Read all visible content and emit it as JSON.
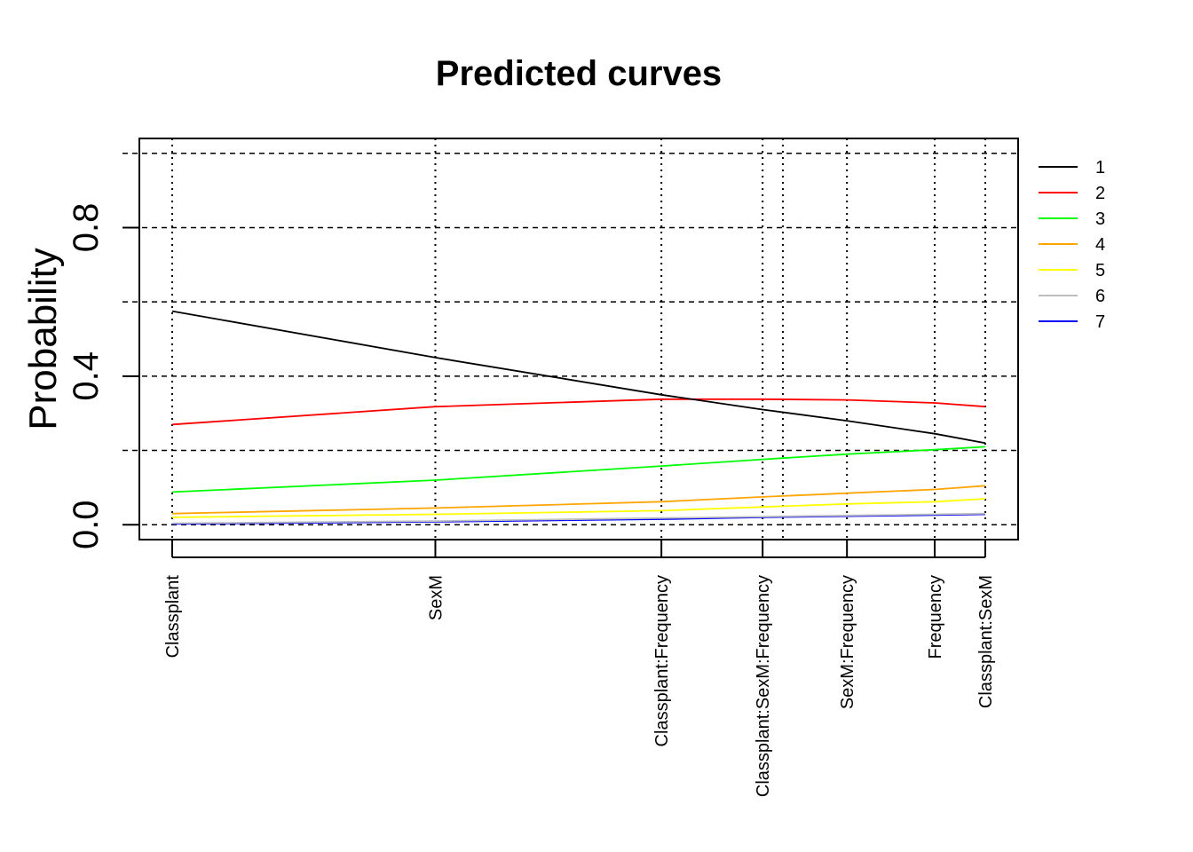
{
  "chart_data": {
    "type": "line",
    "title": "Predicted curves",
    "ylabel": "Probability",
    "xlabel": "",
    "ylim": [
      -0.04,
      1.04
    ],
    "yticks": [
      0.0,
      0.4,
      0.8
    ],
    "ytick_labels": [
      "0.0",
      "0.4",
      "0.8"
    ],
    "hgrid": [
      0.0,
      0.2,
      0.4,
      0.6,
      0.8,
      1.0
    ],
    "xlim": [
      0.9,
      26.0
    ],
    "vgrid_extra": [
      20.0
    ],
    "x_ticks": [
      {
        "x": 1.9,
        "label": "Classplant"
      },
      {
        "x": 9.7,
        "label": "SexM"
      },
      {
        "x": 16.4,
        "label": "Classplant:Frequency"
      },
      {
        "x": 19.4,
        "label": "Classplant:SexM:Frequency"
      },
      {
        "x": 21.9,
        "label": "SexM:Frequency"
      },
      {
        "x": 24.5,
        "label": "Frequency"
      },
      {
        "x": 26.0,
        "label": "Classplant:SexM"
      }
    ],
    "x": [
      1.9,
      9.7,
      16.4,
      19.4,
      21.9,
      24.5,
      26.0
    ],
    "legend_position": "top-right",
    "grid": true,
    "series": [
      {
        "name": "1",
        "color": "#000000",
        "values": [
          0.575,
          0.45,
          0.35,
          0.31,
          0.28,
          0.245,
          0.22
        ]
      },
      {
        "name": "2",
        "color": "#ff0000",
        "values": [
          0.27,
          0.318,
          0.338,
          0.338,
          0.336,
          0.328,
          0.318
        ]
      },
      {
        "name": "3",
        "color": "#00ff00",
        "values": [
          0.088,
          0.12,
          0.158,
          0.176,
          0.19,
          0.202,
          0.21
        ]
      },
      {
        "name": "4",
        "color": "#ffa500",
        "values": [
          0.03,
          0.045,
          0.062,
          0.075,
          0.085,
          0.095,
          0.105
        ]
      },
      {
        "name": "5",
        "color": "#ffff00",
        "values": [
          0.02,
          0.028,
          0.038,
          0.048,
          0.056,
          0.062,
          0.07
        ]
      },
      {
        "name": "6",
        "color": "#bebebe",
        "values": [
          0.004,
          0.01,
          0.018,
          0.022,
          0.025,
          0.028,
          0.03
        ]
      },
      {
        "name": "7",
        "color": "#0000ff",
        "values": [
          0.002,
          0.008,
          0.015,
          0.02,
          0.023,
          0.026,
          0.028
        ]
      }
    ]
  }
}
